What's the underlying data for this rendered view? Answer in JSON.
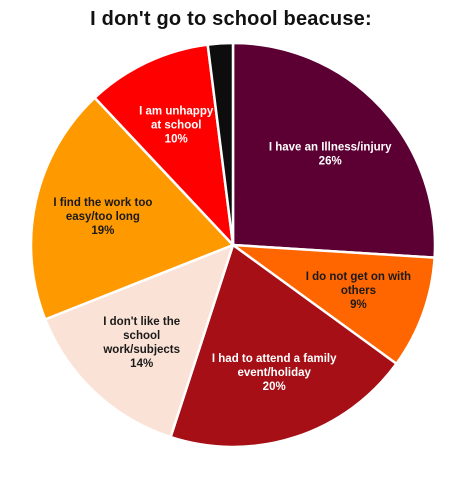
{
  "chart_data": {
    "type": "pie",
    "title": "I don't go to school beacuse:",
    "start_angle_deg": 0,
    "direction": "clockwise",
    "slices": [
      {
        "label_lines": [
          "I have an Illness/injury"
        ],
        "value": 26,
        "value_label": "26%",
        "color": "#5c0033",
        "label_color": "#ffffff"
      },
      {
        "label_lines": [
          "I do not get on with",
          "others"
        ],
        "value": 9,
        "value_label": "9%",
        "color": "#ff6600",
        "label_color": "#1a1a1a"
      },
      {
        "label_lines": [
          "I had to attend a family",
          "event/holiday"
        ],
        "value": 20,
        "value_label": "20%",
        "color": "#a50f15",
        "label_color": "#ffffff"
      },
      {
        "label_lines": [
          "I don't like the",
          "school",
          "work/subjects"
        ],
        "value": 14,
        "value_label": "14%",
        "color": "#fbe2d6",
        "label_color": "#1a1a1a"
      },
      {
        "label_lines": [
          "I find the work too",
          "easy/too long"
        ],
        "value": 19,
        "value_label": "19%",
        "color": "#ff9900",
        "label_color": "#1a1a1a"
      },
      {
        "label_lines": [
          "I am unhappy",
          "at school"
        ],
        "value": 10,
        "value_label": "10%",
        "color": "#ff0000",
        "label_color": "#ffffff"
      },
      {
        "label_lines": [],
        "value": 2,
        "value_label": "",
        "color": "#0d0d0d",
        "label_color": "#ffffff"
      }
    ]
  }
}
